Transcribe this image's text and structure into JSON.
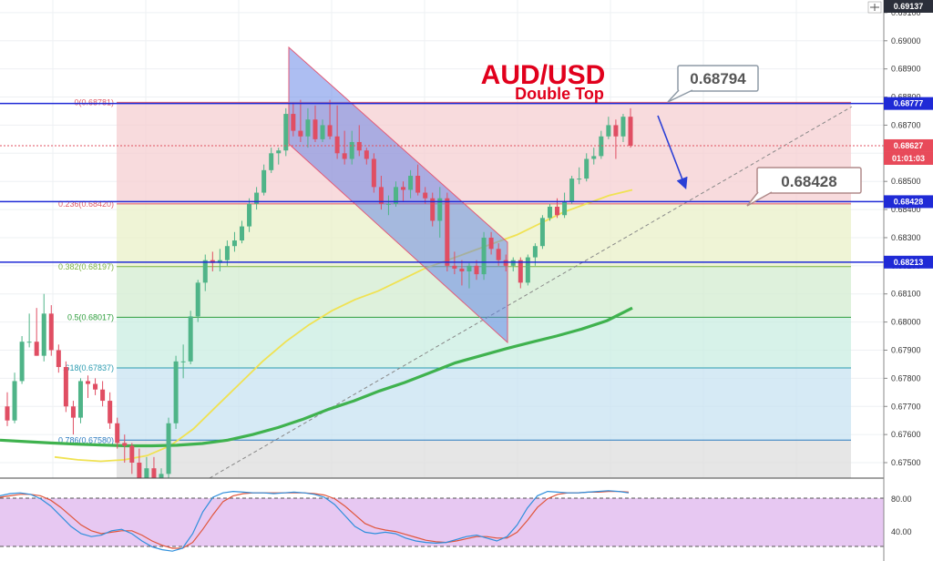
{
  "chart_data": {
    "type": "candlestick",
    "title": "AUD/USD",
    "subtitle": "Double Top",
    "price_axis": {
      "ylim": [
        0.67445,
        0.69145
      ],
      "ticks": [
        "0.69100",
        "0.69000",
        "0.68900",
        "0.68800",
        "0.68700",
        "0.68600",
        "0.68500",
        "0.68400",
        "0.68300",
        "0.68200",
        "0.68100",
        "0.68000",
        "0.67900",
        "0.67800",
        "0.67700",
        "0.67600",
        "0.67500"
      ],
      "top_badge": "0.69137"
    },
    "horizontal_lines": [
      {
        "value": 0.68777,
        "label": "0.68777",
        "color": "#1f2ad6"
      },
      {
        "value": 0.68428,
        "label": "0.68428",
        "color": "#1f2ad6"
      },
      {
        "value": 0.68213,
        "label": "0.68213",
        "color": "#1f2ad6"
      }
    ],
    "current_price": {
      "value": 0.68627,
      "label": "0.68627",
      "countdown": "01:01:03",
      "color": "#e84a5a"
    },
    "fibonacci": [
      {
        "level": 0.68781,
        "label": "0(0.68781)",
        "color": "#e05a66"
      },
      {
        "level": 0.6842,
        "label": "0.236(0.68420)",
        "color": "#e05a66"
      },
      {
        "level": 0.68197,
        "label": "0.382(0.68197)",
        "color": "#7cb342"
      },
      {
        "level": 0.68017,
        "label": "0.5(0.68017)",
        "color": "#2e9e3c"
      },
      {
        "level": 0.67837,
        "label": ".618(0.67837)",
        "color": "#2a9bb0"
      },
      {
        "level": 0.6758,
        "label": "0.786(0.67580)",
        "color": "#2b7bbf"
      }
    ],
    "callouts": [
      "0.68794",
      "0.68428"
    ],
    "candles": [
      {
        "o": 0.677,
        "h": 0.6775,
        "l": 0.6763,
        "c": 0.6765
      },
      {
        "o": 0.6765,
        "h": 0.6782,
        "l": 0.6764,
        "c": 0.6779
      },
      {
        "o": 0.6779,
        "h": 0.6795,
        "l": 0.6778,
        "c": 0.6793
      },
      {
        "o": 0.6793,
        "h": 0.6803,
        "l": 0.6791,
        "c": 0.6793
      },
      {
        "o": 0.6793,
        "h": 0.6805,
        "l": 0.6788,
        "c": 0.6788
      },
      {
        "o": 0.6788,
        "h": 0.681,
        "l": 0.6786,
        "c": 0.6803
      },
      {
        "o": 0.6803,
        "h": 0.6806,
        "l": 0.6788,
        "c": 0.679
      },
      {
        "o": 0.679,
        "h": 0.6792,
        "l": 0.6782,
        "c": 0.6784
      },
      {
        "o": 0.6784,
        "h": 0.6786,
        "l": 0.6768,
        "c": 0.677
      },
      {
        "o": 0.677,
        "h": 0.6772,
        "l": 0.676,
        "c": 0.6766
      },
      {
        "o": 0.6766,
        "h": 0.678,
        "l": 0.6764,
        "c": 0.6779
      },
      {
        "o": 0.6779,
        "h": 0.6781,
        "l": 0.6773,
        "c": 0.6778
      },
      {
        "o": 0.6778,
        "h": 0.678,
        "l": 0.6774,
        "c": 0.6776
      },
      {
        "o": 0.6776,
        "h": 0.6779,
        "l": 0.677,
        "c": 0.6772
      },
      {
        "o": 0.6772,
        "h": 0.6775,
        "l": 0.6762,
        "c": 0.6764
      },
      {
        "o": 0.6764,
        "h": 0.6766,
        "l": 0.6755,
        "c": 0.6757
      },
      {
        "o": 0.6757,
        "h": 0.676,
        "l": 0.675,
        "c": 0.6756
      },
      {
        "o": 0.6756,
        "h": 0.6757,
        "l": 0.6746,
        "c": 0.675
      },
      {
        "o": 0.675,
        "h": 0.6755,
        "l": 0.6743,
        "c": 0.6744
      },
      {
        "o": 0.6744,
        "h": 0.6752,
        "l": 0.6742,
        "c": 0.6748
      },
      {
        "o": 0.6748,
        "h": 0.6752,
        "l": 0.6741,
        "c": 0.6742
      },
      {
        "o": 0.6742,
        "h": 0.6748,
        "l": 0.674,
        "c": 0.6746
      },
      {
        "o": 0.6746,
        "h": 0.6766,
        "l": 0.6744,
        "c": 0.6764
      },
      {
        "o": 0.6764,
        "h": 0.6788,
        "l": 0.6762,
        "c": 0.6786
      },
      {
        "o": 0.6786,
        "h": 0.6792,
        "l": 0.678,
        "c": 0.6786
      },
      {
        "o": 0.6786,
        "h": 0.6804,
        "l": 0.6785,
        "c": 0.6802
      },
      {
        "o": 0.6802,
        "h": 0.6815,
        "l": 0.68,
        "c": 0.6814
      },
      {
        "o": 0.6814,
        "h": 0.6824,
        "l": 0.6811,
        "c": 0.6822
      },
      {
        "o": 0.6822,
        "h": 0.6825,
        "l": 0.6818,
        "c": 0.6821
      },
      {
        "o": 0.6821,
        "h": 0.6826,
        "l": 0.6818,
        "c": 0.6822
      },
      {
        "o": 0.6822,
        "h": 0.6829,
        "l": 0.682,
        "c": 0.6827
      },
      {
        "o": 0.6827,
        "h": 0.6832,
        "l": 0.6825,
        "c": 0.6829
      },
      {
        "o": 0.6829,
        "h": 0.6836,
        "l": 0.6828,
        "c": 0.6834
      },
      {
        "o": 0.6834,
        "h": 0.6844,
        "l": 0.6832,
        "c": 0.6842
      },
      {
        "o": 0.6842,
        "h": 0.6848,
        "l": 0.684,
        "c": 0.6846
      },
      {
        "o": 0.6846,
        "h": 0.6856,
        "l": 0.6845,
        "c": 0.6854
      },
      {
        "o": 0.6854,
        "h": 0.6862,
        "l": 0.6853,
        "c": 0.686
      },
      {
        "o": 0.686,
        "h": 0.6862,
        "l": 0.6856,
        "c": 0.6861
      },
      {
        "o": 0.6861,
        "h": 0.6876,
        "l": 0.6859,
        "c": 0.6874
      },
      {
        "o": 0.6874,
        "h": 0.6878,
        "l": 0.6866,
        "c": 0.6868
      },
      {
        "o": 0.6868,
        "h": 0.6879,
        "l": 0.6864,
        "c": 0.6866
      },
      {
        "o": 0.6866,
        "h": 0.6876,
        "l": 0.6862,
        "c": 0.6872
      },
      {
        "o": 0.6872,
        "h": 0.6877,
        "l": 0.6864,
        "c": 0.6865
      },
      {
        "o": 0.6865,
        "h": 0.6872,
        "l": 0.6864,
        "c": 0.687
      },
      {
        "o": 0.687,
        "h": 0.6879,
        "l": 0.6865,
        "c": 0.6866
      },
      {
        "o": 0.6866,
        "h": 0.6877,
        "l": 0.6858,
        "c": 0.686
      },
      {
        "o": 0.686,
        "h": 0.6868,
        "l": 0.6856,
        "c": 0.6858
      },
      {
        "o": 0.6858,
        "h": 0.6868,
        "l": 0.6856,
        "c": 0.6864
      },
      {
        "o": 0.6864,
        "h": 0.687,
        "l": 0.6859,
        "c": 0.6861
      },
      {
        "o": 0.6861,
        "h": 0.6862,
        "l": 0.6856,
        "c": 0.6858
      },
      {
        "o": 0.6858,
        "h": 0.686,
        "l": 0.6846,
        "c": 0.6848
      },
      {
        "o": 0.6848,
        "h": 0.6852,
        "l": 0.684,
        "c": 0.6842
      },
      {
        "o": 0.6842,
        "h": 0.6845,
        "l": 0.6838,
        "c": 0.6842
      },
      {
        "o": 0.6842,
        "h": 0.685,
        "l": 0.6841,
        "c": 0.6848
      },
      {
        "o": 0.6848,
        "h": 0.685,
        "l": 0.6843,
        "c": 0.6847
      },
      {
        "o": 0.6847,
        "h": 0.6854,
        "l": 0.6844,
        "c": 0.6852
      },
      {
        "o": 0.6852,
        "h": 0.6856,
        "l": 0.6845,
        "c": 0.6846
      },
      {
        "o": 0.6846,
        "h": 0.6848,
        "l": 0.6842,
        "c": 0.6844
      },
      {
        "o": 0.6844,
        "h": 0.6846,
        "l": 0.6834,
        "c": 0.6836
      },
      {
        "o": 0.6836,
        "h": 0.6848,
        "l": 0.683,
        "c": 0.6844
      },
      {
        "o": 0.6844,
        "h": 0.6846,
        "l": 0.6818,
        "c": 0.682
      },
      {
        "o": 0.682,
        "h": 0.6825,
        "l": 0.6817,
        "c": 0.6819
      },
      {
        "o": 0.6819,
        "h": 0.6822,
        "l": 0.6813,
        "c": 0.6818
      },
      {
        "o": 0.6818,
        "h": 0.6821,
        "l": 0.6812,
        "c": 0.682
      },
      {
        "o": 0.682,
        "h": 0.6822,
        "l": 0.6815,
        "c": 0.6817
      },
      {
        "o": 0.6817,
        "h": 0.6832,
        "l": 0.6815,
        "c": 0.683
      },
      {
        "o": 0.683,
        "h": 0.6832,
        "l": 0.6824,
        "c": 0.6826
      },
      {
        "o": 0.6826,
        "h": 0.6828,
        "l": 0.682,
        "c": 0.6822
      },
      {
        "o": 0.6822,
        "h": 0.6824,
        "l": 0.6818,
        "c": 0.682
      },
      {
        "o": 0.682,
        "h": 0.6823,
        "l": 0.6818,
        "c": 0.6822
      },
      {
        "o": 0.6822,
        "h": 0.6823,
        "l": 0.6812,
        "c": 0.6814
      },
      {
        "o": 0.6814,
        "h": 0.6824,
        "l": 0.6813,
        "c": 0.6823
      },
      {
        "o": 0.6823,
        "h": 0.6828,
        "l": 0.682,
        "c": 0.6827
      },
      {
        "o": 0.6827,
        "h": 0.6838,
        "l": 0.6826,
        "c": 0.6837
      },
      {
        "o": 0.6837,
        "h": 0.6842,
        "l": 0.6836,
        "c": 0.6841
      },
      {
        "o": 0.6841,
        "h": 0.6844,
        "l": 0.6837,
        "c": 0.6838
      },
      {
        "o": 0.6838,
        "h": 0.6846,
        "l": 0.6837,
        "c": 0.6843
      },
      {
        "o": 0.6843,
        "h": 0.6852,
        "l": 0.6842,
        "c": 0.6851
      },
      {
        "o": 0.6851,
        "h": 0.6855,
        "l": 0.6849,
        "c": 0.6851
      },
      {
        "o": 0.6851,
        "h": 0.686,
        "l": 0.685,
        "c": 0.6858
      },
      {
        "o": 0.6858,
        "h": 0.6862,
        "l": 0.6856,
        "c": 0.6859
      },
      {
        "o": 0.6859,
        "h": 0.6868,
        "l": 0.6858,
        "c": 0.6866
      },
      {
        "o": 0.6866,
        "h": 0.6873,
        "l": 0.6865,
        "c": 0.687
      },
      {
        "o": 0.687,
        "h": 0.6872,
        "l": 0.6858,
        "c": 0.6866
      },
      {
        "o": 0.6866,
        "h": 0.6874,
        "l": 0.6864,
        "c": 0.6873
      },
      {
        "o": 0.6873,
        "h": 0.6876,
        "l": 0.6862,
        "c": 0.68627
      }
    ],
    "ma_fast": [
      0.6752,
      0.6751,
      0.67505,
      0.6751,
      0.67525,
      0.6756,
      0.6762,
      0.677,
      0.6778,
      0.6786,
      0.6793,
      0.6799,
      0.6804,
      0.6808,
      0.6811,
      0.6815,
      0.6819,
      0.6822,
      0.6825,
      0.6828,
      0.6831,
      0.6835,
      0.6839,
      0.6842,
      0.6845,
      0.6847
    ],
    "ma_slow": [
      0.6758,
      0.67575,
      0.6757,
      0.67566,
      0.67563,
      0.6756,
      0.6756,
      0.67562,
      0.67568,
      0.6758,
      0.676,
      0.67625,
      0.67655,
      0.6769,
      0.6772,
      0.67755,
      0.67785,
      0.6782,
      0.67855,
      0.6788,
      0.67905,
      0.67928,
      0.6795,
      0.67975,
      0.68005,
      0.6805
    ],
    "oscillator": {
      "levels": [
        "80.00",
        "40.00"
      ],
      "k": [
        82,
        85,
        86,
        84,
        78,
        68,
        54,
        40,
        30,
        26,
        28,
        34,
        36,
        30,
        20,
        12,
        8,
        6,
        10,
        30,
        60,
        80,
        86,
        88,
        87,
        86,
        86,
        85,
        86,
        87,
        86,
        84,
        80,
        70,
        55,
        40,
        32,
        30,
        32,
        30,
        24,
        20,
        18,
        17,
        18,
        22,
        26,
        28,
        24,
        20,
        26,
        42,
        65,
        82,
        88,
        87,
        86,
        86,
        87,
        88,
        89,
        88,
        86
      ],
      "d": [
        80,
        82,
        84,
        84,
        82,
        76,
        66,
        54,
        42,
        34,
        30,
        32,
        34,
        34,
        28,
        20,
        14,
        10,
        10,
        18,
        36,
        56,
        74,
        82,
        85,
        86,
        86,
        86,
        86,
        86,
        86,
        85,
        83,
        78,
        68,
        56,
        44,
        38,
        35,
        33,
        29,
        25,
        21,
        19,
        18,
        20,
        23,
        26,
        26,
        24,
        24,
        32,
        48,
        66,
        78,
        84,
        86,
        86,
        87,
        87,
        88,
        88,
        87
      ]
    }
  }
}
